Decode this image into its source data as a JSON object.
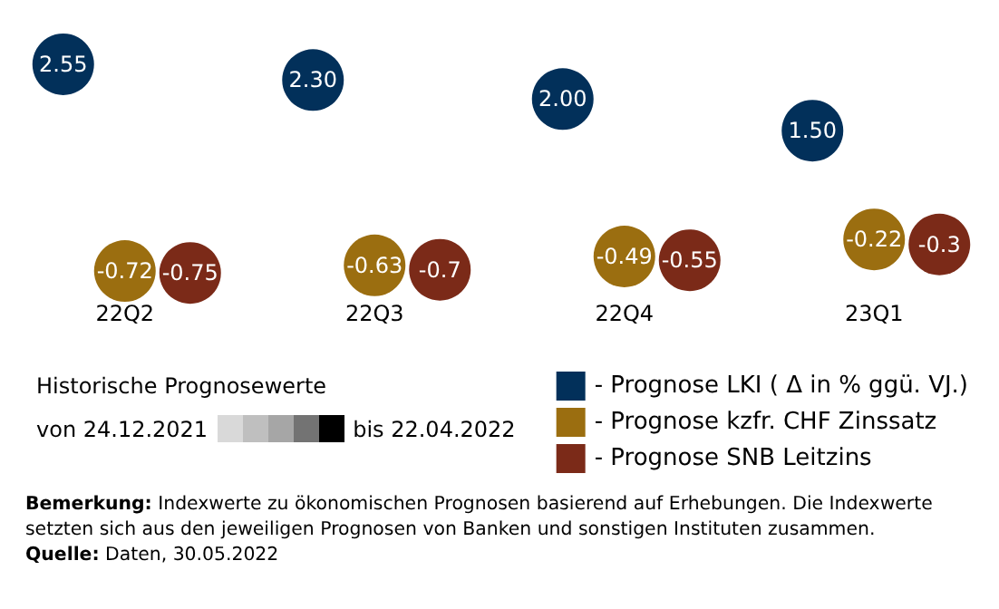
{
  "chart_data": {
    "type": "scatter",
    "categories": [
      "22Q2",
      "22Q3",
      "22Q4",
      "23Q1"
    ],
    "series": [
      {
        "name": "- Prognose LKI ( Δ in % ggü. VJ.)",
        "color": "#02305a",
        "values": [
          2.55,
          2.3,
          2.0,
          1.5
        ],
        "value_labels": [
          "2.55",
          "2.30",
          "2.00",
          "1.50"
        ]
      },
      {
        "name": "- Prognose kzfr. CHF Zinssatz",
        "color": "#9b6e10",
        "values": [
          -0.72,
          -0.63,
          -0.49,
          -0.22
        ],
        "value_labels": [
          "-0.72",
          "-0.63",
          "-0.49",
          "-0.22"
        ]
      },
      {
        "name": "- Prognose SNB Leitzins",
        "color": "#7b2a18",
        "values": [
          -0.75,
          -0.7,
          -0.55,
          -0.3
        ],
        "value_labels": [
          "-0.75",
          "-0.7",
          "-0.55",
          "-0.3"
        ]
      }
    ],
    "marker": "circle",
    "grid": false,
    "legend": "bottom right",
    "annotations": [
      "Historische Prognosewerte",
      "von 24.12.2021",
      "bis 22.04.2022",
      "Bemerkung: Indexwerte zu ökonomischen Prognosen basierend auf Erhebungen. Die Indexwerte setzten sich aus den jeweiligen Prognosen von Banken und sonstigen Instituten zusammen.",
      "Quelle: Daten, 30.05.2022"
    ]
  }
}
